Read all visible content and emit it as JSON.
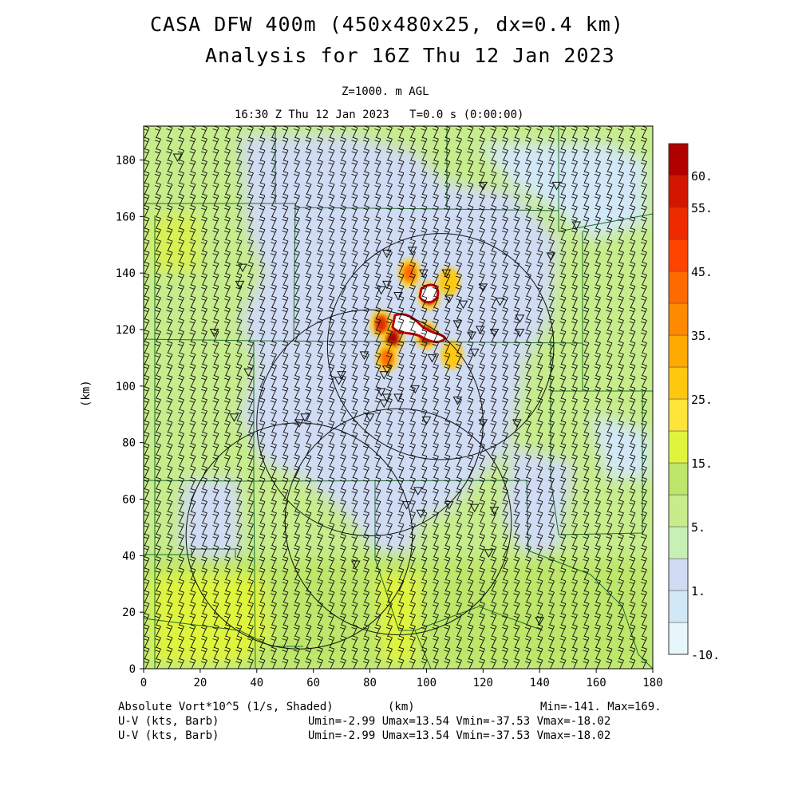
{
  "header": {
    "title": "CASA DFW 400m (450x480x25, dx=0.4 km)",
    "subtitle": "Analysis for 16Z Thu 12 Jan 2023",
    "level": "Z=1000. m AGL",
    "time": "16:30 Z Thu 12 Jan 2023   T=0.0 s (0:00:00)"
  },
  "chart_data": {
    "type": "heatmap",
    "xlabel": "(km)",
    "ylabel": "(km)",
    "xlim": [
      0,
      180
    ],
    "ylim": [
      0,
      192
    ],
    "x_ticks": [
      0,
      20,
      40,
      60,
      80,
      100,
      120,
      140,
      160,
      180
    ],
    "y_ticks": [
      0,
      20,
      40,
      60,
      80,
      100,
      120,
      140,
      160,
      180
    ],
    "colorbar": {
      "levels": [
        "-10.",
        "1.",
        "5.",
        "15.",
        "25.",
        "35.",
        "45.",
        "55.",
        "60."
      ],
      "colors": [
        "#e6f6fb",
        "#d2e8f6",
        "#d0dcf3",
        "#c6f0b6",
        "#c6ec8c",
        "#bde66a",
        "#dff43c",
        "#ffe43a",
        "#ffc810",
        "#ffaa00",
        "#ff8a00",
        "#ff6a00",
        "#ff4400",
        "#ee2a00",
        "#d41600",
        "#b00000"
      ]
    },
    "field": "Absolute Vort*10^5 (1/s, Shaded)",
    "vectors": [
      "U-V (kts, Barb)",
      "U-V (kts, Barb)"
    ],
    "stats": {
      "minmax": "Min=-141. Max=169.",
      "uv1": "Umin=-2.99 Umax=13.54 Vmin=-37.53 Vmax=-18.02",
      "uv2": "Umin=-2.99 Umax=13.54 Vmin=-37.53 Vmax=-18.02"
    },
    "radar_rings": [
      {
        "cx": 105,
        "cy": 114,
        "r": 40
      },
      {
        "cx": 80,
        "cy": 87,
        "r": 40
      },
      {
        "cx": 90,
        "cy": 52,
        "r": 40
      },
      {
        "cx": 55,
        "cy": 47,
        "r": 40
      }
    ],
    "vortex_cores": [
      {
        "x": 88,
        "y": 117,
        "value": 55
      },
      {
        "x": 100,
        "y": 118,
        "value": 60
      },
      {
        "x": 101,
        "y": 132,
        "value": 60
      },
      {
        "x": 94,
        "y": 140,
        "value": 35
      },
      {
        "x": 108,
        "y": 137,
        "value": 25
      },
      {
        "x": 84,
        "y": 122,
        "value": 45
      },
      {
        "x": 86,
        "y": 110,
        "value": 35
      },
      {
        "x": 109,
        "y": 111,
        "value": 25
      }
    ]
  }
}
